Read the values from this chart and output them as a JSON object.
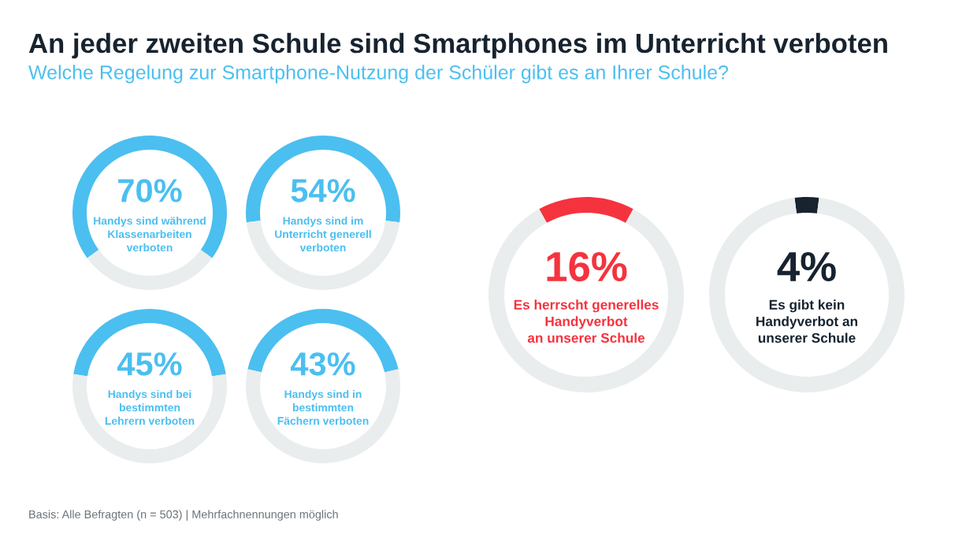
{
  "chart_data": [
    {
      "type": "other",
      "title": "An jeder zweiten Schule sind Smartphones im Unterricht verboten",
      "subtitle": "Welche Regelung zur Smartphone-Nutzung der Schüler gibt es an Ihrer Schule?",
      "annotations": [
        "Basis: Alle Befragten (n = 503) | Mehrfachnennungen möglich"
      ]
    },
    {
      "type": "donut",
      "title": "Handys sind während\nKlassenarbeiten\nverboten",
      "categories": [
        null,
        null
      ],
      "values": [
        70,
        30
      ],
      "value_labels": [
        "70%",
        null
      ],
      "colors": [
        "#4bbff0",
        "#e9eded"
      ]
    },
    {
      "type": "donut",
      "title": "Handys sind im\nUnterricht generell\nverboten",
      "categories": [
        null,
        null
      ],
      "values": [
        54,
        46
      ],
      "value_labels": [
        "54%",
        null
      ],
      "colors": [
        "#4bbff0",
        "#e9eded"
      ]
    },
    {
      "type": "donut",
      "title": "Handys sind bei\nbestimmten\nLehrern verboten",
      "categories": [
        null,
        null
      ],
      "values": [
        45,
        55
      ],
      "value_labels": [
        "45%",
        null
      ],
      "colors": [
        "#4bbff0",
        "#e9eded"
      ]
    },
    {
      "type": "donut",
      "title": "Handys sind in\nbestimmten\nFächern verboten",
      "categories": [
        null,
        null
      ],
      "values": [
        43,
        57
      ],
      "value_labels": [
        "43%",
        null
      ],
      "colors": [
        "#4bbff0",
        "#e9eded"
      ]
    },
    {
      "type": "donut",
      "title": "Es herrscht generelles\nHandyverbot\nan unserer Schule",
      "categories": [
        null,
        null
      ],
      "values": [
        16,
        84
      ],
      "value_labels": [
        "16%",
        null
      ],
      "colors": [
        "#f5333f",
        "#e9eded"
      ]
    },
    {
      "type": "donut",
      "title": "Es gibt kein\nHandyverbot an\nunserer Schule",
      "categories": [
        null,
        null
      ],
      "values": [
        4,
        96
      ],
      "value_labels": [
        "4%",
        null
      ],
      "colors": [
        "#17232f",
        "#e9eded"
      ]
    }
  ]
}
